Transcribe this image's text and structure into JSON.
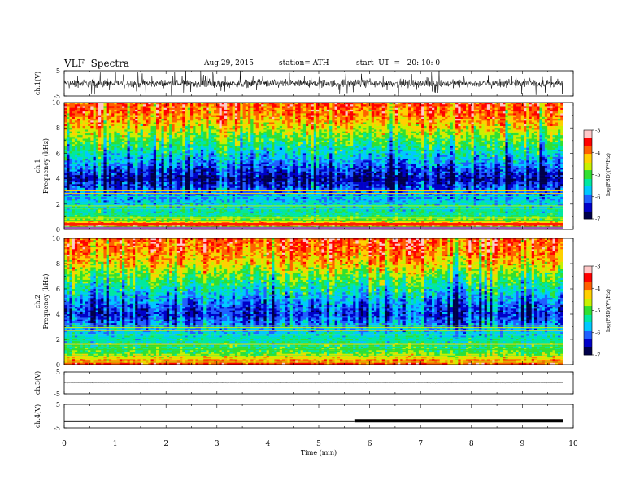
{
  "header": {
    "title": "VLF  Spectra",
    "date": "Aug.29, 2015",
    "station": "station= ATH",
    "start": "start  UT  =   20: 10: 0"
  },
  "chart_data": [
    {
      "type": "line",
      "panel": "ch1-waveform",
      "ylabel": "ch.1(V)",
      "ylim": [
        -5,
        5
      ],
      "yticks": [
        "5",
        "-5"
      ],
      "xlim": [
        0,
        10
      ],
      "trace_level": 0,
      "trace_amplitude": 1.5
    },
    {
      "type": "heatmap",
      "panel": "ch1-spectrogram",
      "ylabel_top": "ch.1",
      "ylabel": "Frequency  (kHz)",
      "ylim": [
        0,
        10
      ],
      "yticks": [
        "0",
        "2",
        "4",
        "6",
        "8",
        "10"
      ],
      "xlim": [
        0,
        9.8
      ],
      "colorbar": {
        "label": "log(PSD)(V²/Hz)",
        "range": [
          -7,
          -3
        ],
        "ticks": [
          "-3",
          "-4",
          "-5",
          "-6",
          "-7"
        ]
      },
      "approx_log_psd_by_frequency_khz": [
        {
          "f": 0.5,
          "v": -4.2
        },
        {
          "f": 1.0,
          "v": -5.2
        },
        {
          "f": 2.0,
          "v": -5.6
        },
        {
          "f": 3.0,
          "v": -6.0
        },
        {
          "f": 4.0,
          "v": -6.6
        },
        {
          "f": 5.0,
          "v": -6.0
        },
        {
          "f": 6.0,
          "v": -5.5
        },
        {
          "f": 7.0,
          "v": -5.0
        },
        {
          "f": 8.0,
          "v": -4.4
        },
        {
          "f": 9.0,
          "v": -3.9
        },
        {
          "f": 10.0,
          "v": -3.7
        }
      ]
    },
    {
      "type": "heatmap",
      "panel": "ch2-spectrogram",
      "ylabel_top": "ch.2",
      "ylabel": "Frequency  (kHz)",
      "ylim": [
        0,
        10
      ],
      "yticks": [
        "0",
        "2",
        "4",
        "6",
        "8",
        "10"
      ],
      "xlim": [
        0,
        9.8
      ],
      "colorbar": {
        "label": "log(PSD)(V²/Hz)",
        "range": [
          -7,
          -3
        ],
        "ticks": [
          "-3",
          "-4",
          "-5",
          "-6",
          "-7"
        ]
      },
      "approx_log_psd_by_frequency_khz": [
        {
          "f": 0.5,
          "v": -4.3
        },
        {
          "f": 1.0,
          "v": -5.0
        },
        {
          "f": 2.0,
          "v": -5.4
        },
        {
          "f": 3.0,
          "v": -5.8
        },
        {
          "f": 4.0,
          "v": -6.3
        },
        {
          "f": 5.0,
          "v": -5.9
        },
        {
          "f": 6.0,
          "v": -5.4
        },
        {
          "f": 7.0,
          "v": -4.9
        },
        {
          "f": 8.0,
          "v": -4.3
        },
        {
          "f": 9.0,
          "v": -3.9
        },
        {
          "f": 10.0,
          "v": -3.7
        }
      ]
    },
    {
      "type": "line",
      "panel": "ch3-waveform",
      "ylabel": "ch.3(V)",
      "ylim": [
        -5,
        5
      ],
      "yticks": [
        "5",
        "-5"
      ],
      "xlim": [
        0,
        10
      ],
      "trace_level": 0,
      "trace_amplitude": 0.15
    },
    {
      "type": "line",
      "panel": "ch4-waveform",
      "ylabel": "ch.4(V)",
      "ylim": [
        -5,
        5
      ],
      "yticks": [
        "5",
        "-5"
      ],
      "xlim": [
        0,
        10
      ],
      "trace_level": -2,
      "thick_segment": [
        5.7,
        9.8
      ]
    }
  ],
  "xaxis": {
    "label": "Time  (min)",
    "range": [
      0,
      10
    ],
    "ticks": [
      "0",
      "1",
      "2",
      "3",
      "4",
      "5",
      "6",
      "7",
      "8",
      "9",
      "10"
    ]
  },
  "colors": {
    "colormap": [
      "#00004a",
      "#0000c8",
      "#2060ff",
      "#00c8ff",
      "#00e8a0",
      "#30e030",
      "#c8f000",
      "#ffd000",
      "#ff6000",
      "#ff0000",
      "#ffc8c8"
    ]
  }
}
